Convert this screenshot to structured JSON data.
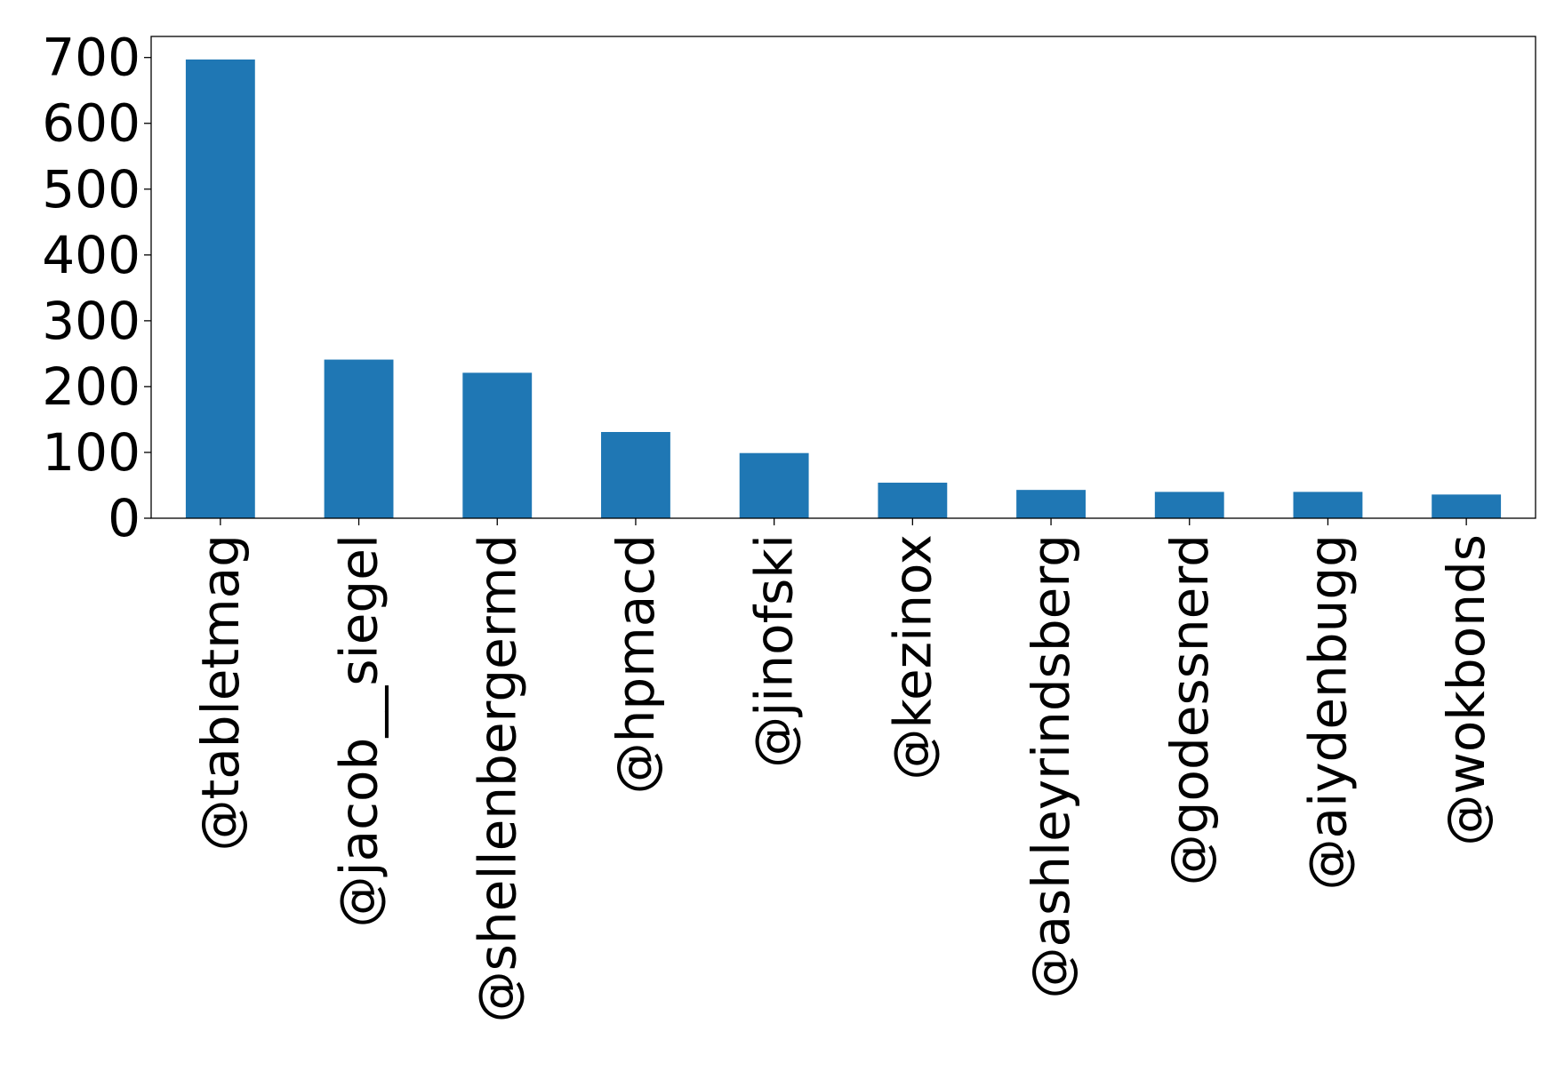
{
  "chart_data": {
    "type": "bar",
    "title": "",
    "xlabel": "",
    "ylabel": "",
    "categories": [
      "@tabletmag",
      "@jacob__siegel",
      "@shellenbergermd",
      "@hpmacd",
      "@jinofski",
      "@kezinox",
      "@ashleyrindsberg",
      "@godessnerd",
      "@aiydenbugg",
      "@wokbonds"
    ],
    "values": [
      697,
      241,
      221,
      131,
      99,
      54,
      43,
      40,
      40,
      36
    ],
    "ylim": [
      0,
      732
    ],
    "yticks": [
      0,
      100,
      200,
      300,
      400,
      500,
      600,
      700
    ],
    "bar_color": "#1f77b4",
    "grid": false,
    "legend": "none"
  }
}
